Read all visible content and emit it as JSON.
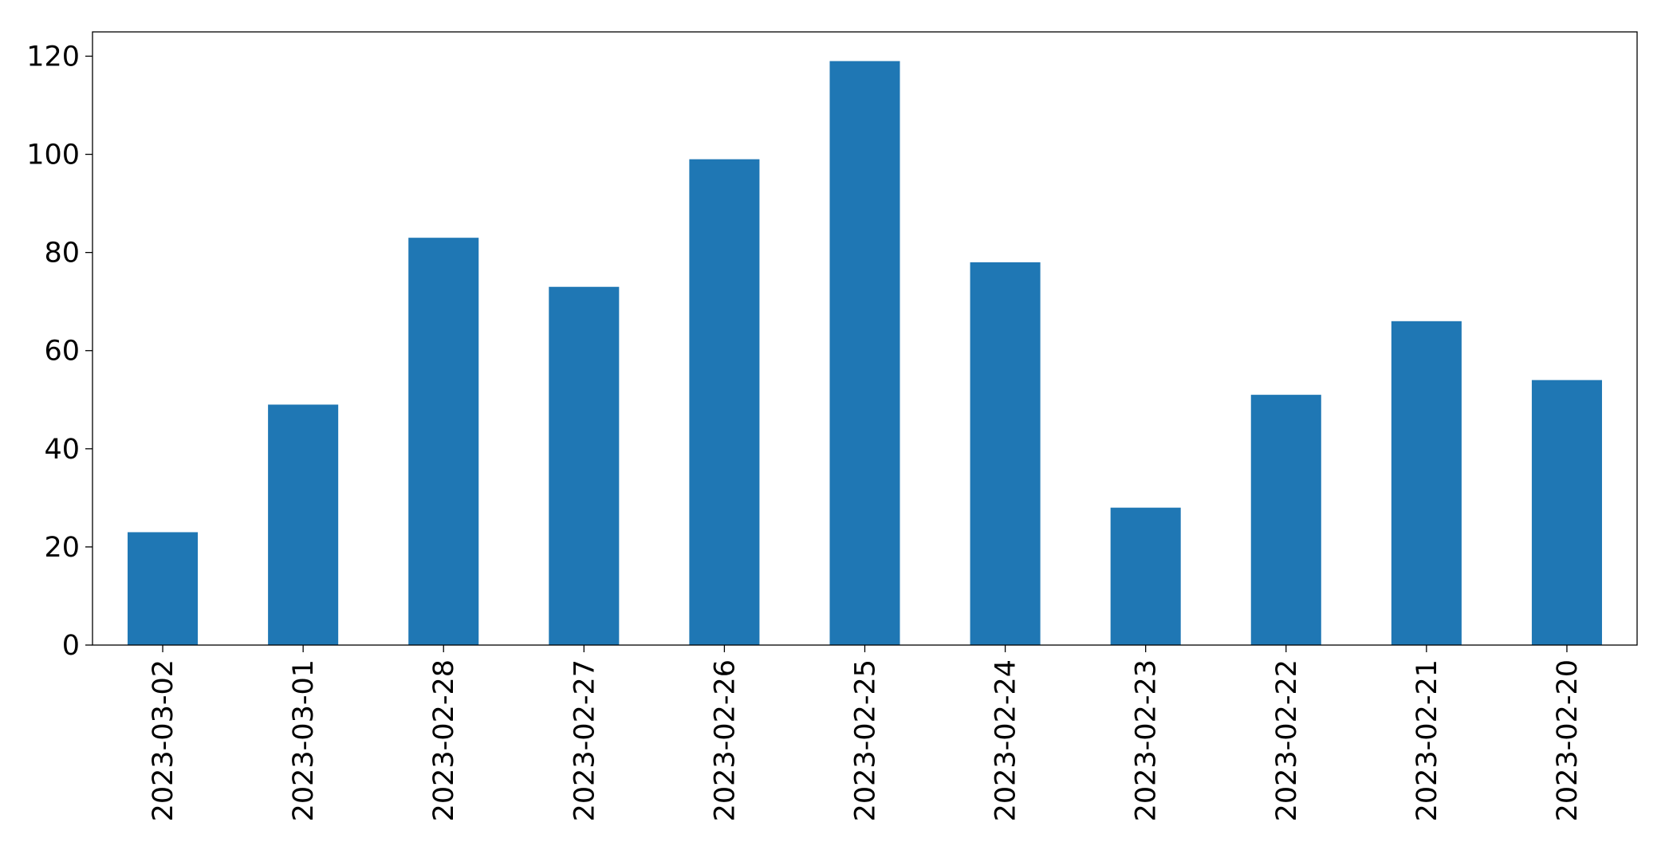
{
  "chart_data": {
    "type": "bar",
    "categories": [
      "2023-03-02",
      "2023-03-01",
      "2023-02-28",
      "2023-02-27",
      "2023-02-26",
      "2023-02-25",
      "2023-02-24",
      "2023-02-23",
      "2023-02-22",
      "2023-02-21",
      "2023-02-20"
    ],
    "values": [
      23,
      49,
      83,
      73,
      99,
      119,
      78,
      28,
      51,
      66,
      54
    ],
    "color": "#1f77b4",
    "ylim": [
      0,
      124.95
    ],
    "yticks": [
      0,
      20,
      40,
      60,
      80,
      100,
      120
    ],
    "grid": false
  }
}
